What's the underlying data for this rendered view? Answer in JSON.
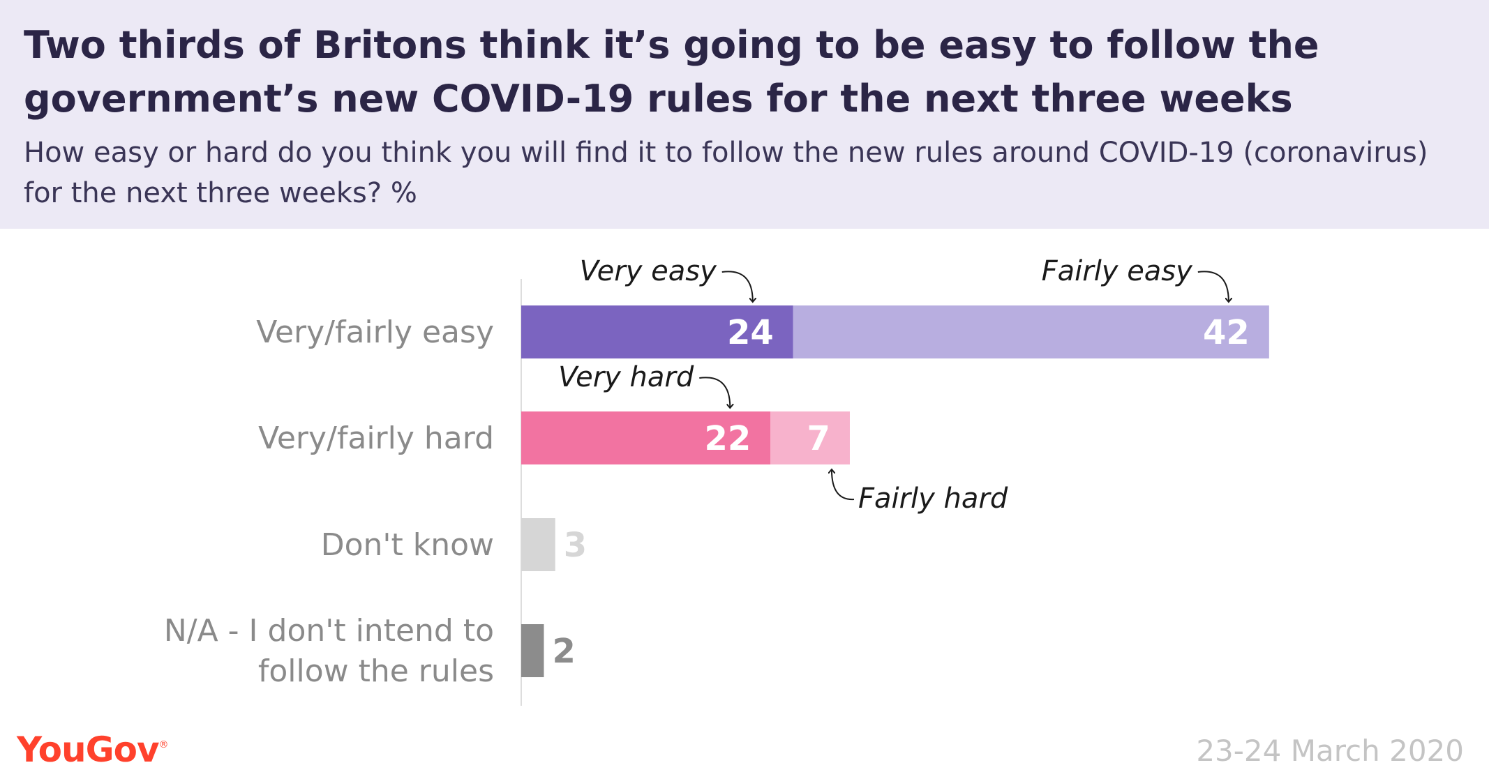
{
  "title": "Two thirds of Britons think it’s going to be easy to follow the government’s new COVID-19 rules for the next three weeks",
  "subtitle": "How easy or hard do you think you will find it to follow the new rules around COVID-19 (coronavirus) for the next three weeks? %",
  "chart_data": {
    "type": "bar",
    "orientation": "horizontal",
    "stacked": true,
    "categories": [
      "Very/fairly easy",
      "Very/fairly hard",
      "Don't know",
      "N/A - I don't intend to follow the rules"
    ],
    "category_lines": [
      [
        "Very/fairly easy"
      ],
      [
        "Very/fairly hard"
      ],
      [
        "Don't know"
      ],
      [
        "N/A - I don't intend to",
        "follow the rules"
      ]
    ],
    "segments": [
      [
        {
          "name": "Very easy",
          "value": 24,
          "color": "#7b64c0",
          "label_color": "#ffffff",
          "label_inside": true,
          "annotation": "Very easy",
          "annotation_pos": "above"
        },
        {
          "name": "Fairly easy",
          "value": 42,
          "color": "#b8aee0",
          "label_color": "#ffffff",
          "label_inside": true,
          "annotation": "Fairly easy",
          "annotation_pos": "above"
        }
      ],
      [
        {
          "name": "Very hard",
          "value": 22,
          "color": "#f273a1",
          "label_color": "#ffffff",
          "label_inside": true,
          "annotation": "Very hard",
          "annotation_pos": "above"
        },
        {
          "name": "Fairly hard",
          "value": 7,
          "color": "#f7b2cc",
          "label_color": "#ffffff",
          "label_inside": true,
          "annotation": "Fairly hard",
          "annotation_pos": "below"
        }
      ],
      [
        {
          "name": "",
          "value": 3,
          "color": "#d6d6d6",
          "label_color": "#d6d6d6",
          "label_inside": false,
          "annotation": ""
        }
      ],
      [
        {
          "name": "",
          "value": 2,
          "color": "#8c8c8c",
          "label_color": "#8c8c8c",
          "label_inside": false,
          "annotation": ""
        }
      ]
    ],
    "xlim": [
      0,
      72
    ],
    "grid": false,
    "legend": "none",
    "axis_line_color": "#dddddd",
    "category_label_color": "#8a8a8a",
    "annotation_color": "#1a1a1a"
  },
  "footer": {
    "source": "YouGov",
    "source_mark": "®",
    "date": "23-24 March 2020"
  }
}
